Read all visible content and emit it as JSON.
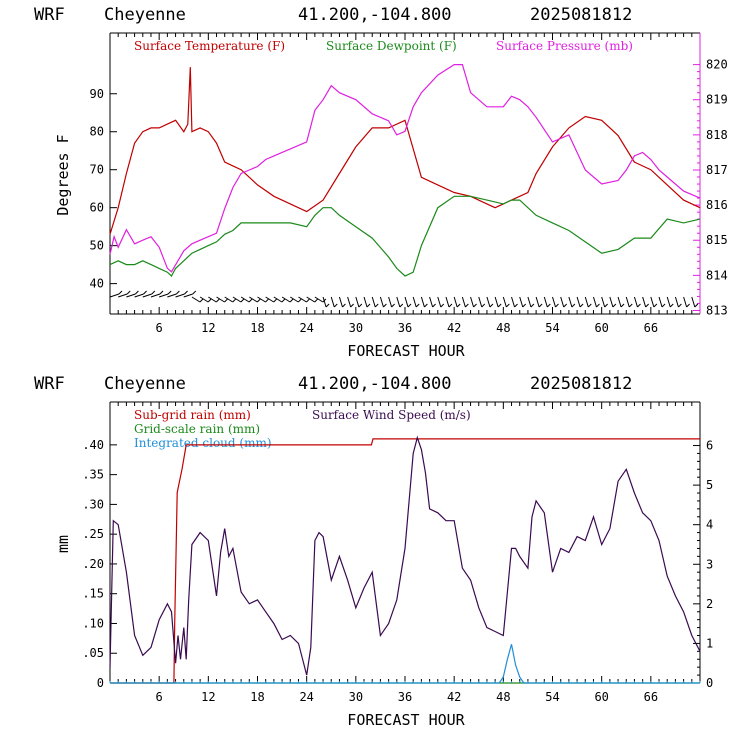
{
  "colors": {
    "temperature": "#c00000",
    "dewpoint": "#1a8a1a",
    "pressure": "#e020e0",
    "subgrid": "#c00000",
    "gridscale": "#1a8a1a",
    "cloud": "#1f8fd8",
    "wind": "#3a0a50",
    "frame": "#000000"
  },
  "chart_data": [
    {
      "type": "line",
      "header": {
        "model": "WRF",
        "site": "Cheyenne",
        "coords": "41.200,-104.800",
        "run": "2025081812"
      },
      "xlabel": "FORECAST HOUR",
      "ylabel": "Degrees F",
      "xlim": [
        0,
        72
      ],
      "ylim": [
        32,
        106
      ],
      "y2lim": [
        812.9,
        820.9
      ],
      "xticks": [
        "6",
        "12",
        "18",
        "24",
        "30",
        "36",
        "42",
        "48",
        "54",
        "60",
        "66"
      ],
      "xtick_values": [
        6,
        12,
        18,
        24,
        30,
        36,
        42,
        48,
        54,
        60,
        66
      ],
      "yticks": [
        "40",
        "50",
        "60",
        "70",
        "80",
        "90"
      ],
      "ytick_values": [
        40,
        50,
        60,
        70,
        80,
        90
      ],
      "y2ticks": [
        "813",
        "814",
        "815",
        "816",
        "817",
        "818",
        "819",
        "820"
      ],
      "y2tick_values": [
        813,
        814,
        815,
        816,
        817,
        818,
        819,
        820
      ],
      "series": [
        {
          "name": "Surface Temperature (F)",
          "color_key": "temperature",
          "axis": "left",
          "x": [
            0,
            1,
            2,
            3,
            4,
            5,
            6,
            7,
            8,
            9,
            9.5,
            9.8,
            10,
            11,
            12,
            13,
            14,
            15,
            16,
            18,
            20,
            22,
            24,
            26,
            28,
            30,
            32,
            34,
            36,
            38,
            40,
            42,
            44,
            46,
            47,
            48,
            49,
            50,
            51,
            52,
            54,
            56,
            58,
            60,
            62,
            64,
            66,
            68,
            70,
            72
          ],
          "y": [
            53,
            60,
            69,
            77,
            80,
            81,
            81,
            82,
            83,
            80,
            82,
            97,
            80,
            81,
            80,
            77,
            72,
            71,
            70,
            66,
            63,
            61,
            59,
            62,
            69,
            76,
            81,
            81,
            83,
            68,
            66,
            64,
            63,
            61,
            60,
            61,
            62,
            63,
            64,
            69,
            76,
            81,
            84,
            83,
            79,
            72,
            70,
            66,
            62,
            60
          ]
        },
        {
          "name": "Surface Dewpoint (F)",
          "color_key": "dewpoint",
          "axis": "left",
          "x": [
            0,
            1,
            2,
            3,
            4,
            5,
            6,
            7,
            7.5,
            8,
            9,
            10,
            11,
            12,
            13,
            14,
            15,
            16,
            18,
            20,
            22,
            24,
            25,
            26,
            27,
            28,
            30,
            32,
            34,
            35,
            36,
            37,
            38,
            40,
            42,
            44,
            46,
            48,
            49,
            50,
            52,
            54,
            56,
            58,
            60,
            62,
            64,
            66,
            68,
            70,
            72
          ],
          "y": [
            45,
            46,
            45,
            45,
            46,
            45,
            44,
            43,
            42,
            44,
            46,
            48,
            49,
            50,
            51,
            53,
            54,
            56,
            56,
            56,
            56,
            55,
            58,
            60,
            60,
            58,
            55,
            52,
            47,
            44,
            42,
            43,
            50,
            60,
            63,
            63,
            62,
            61,
            62,
            62,
            58,
            56,
            54,
            51,
            48,
            49,
            52,
            52,
            57,
            56,
            57
          ]
        },
        {
          "name": "Surface Pressure (mb)",
          "color_key": "pressure",
          "axis": "right",
          "x": [
            0,
            0.5,
            1,
            2,
            3,
            4,
            5,
            6,
            6.5,
            7,
            7.5,
            8,
            9,
            10,
            11,
            12,
            13,
            14,
            15,
            16,
            17,
            18,
            19,
            20,
            22,
            24,
            25,
            26,
            27,
            28,
            30,
            32,
            34,
            35,
            36,
            37,
            38,
            40,
            42,
            43,
            44,
            46,
            48,
            49,
            50,
            51,
            52,
            54,
            56,
            58,
            60,
            62,
            63,
            64,
            65,
            66,
            67,
            68,
            70,
            72
          ],
          "y": [
            814.6,
            815.1,
            814.8,
            815.3,
            814.9,
            815.0,
            815.1,
            814.8,
            814.5,
            814.2,
            814.1,
            814.3,
            814.7,
            814.9,
            815.0,
            815.1,
            815.2,
            815.9,
            816.5,
            816.9,
            817.0,
            817.1,
            817.3,
            817.4,
            817.6,
            817.8,
            818.7,
            819.0,
            819.4,
            819.2,
            819.0,
            818.6,
            818.4,
            818.0,
            818.1,
            818.8,
            819.2,
            819.7,
            820.0,
            820.0,
            819.2,
            818.8,
            818.8,
            819.1,
            819.0,
            818.8,
            818.5,
            817.8,
            818.0,
            817.0,
            816.6,
            816.7,
            817.0,
            817.4,
            817.5,
            817.3,
            817.0,
            816.8,
            816.4,
            816.2
          ]
        }
      ],
      "wind_barbs": true
    },
    {
      "type": "line",
      "header": {
        "model": "WRF",
        "site": "Cheyenne",
        "coords": "41.200,-104.800",
        "run": "2025081812"
      },
      "xlabel": "FORECAST HOUR",
      "ylabel": "mm",
      "xlim": [
        0,
        72
      ],
      "ylim": [
        0,
        0.472
      ],
      "y2lim": [
        0,
        7.1
      ],
      "xticks": [
        "6",
        "12",
        "18",
        "24",
        "30",
        "36",
        "42",
        "48",
        "54",
        "60",
        "66"
      ],
      "xtick_values": [
        6,
        12,
        18,
        24,
        30,
        36,
        42,
        48,
        54,
        60,
        66
      ],
      "yticks": [
        "0",
        ".05",
        ".10",
        ".15",
        ".20",
        ".25",
        ".30",
        ".35",
        ".40"
      ],
      "ytick_values": [
        0,
        0.05,
        0.1,
        0.15,
        0.2,
        0.25,
        0.3,
        0.35,
        0.4
      ],
      "y2ticks": [
        "0",
        "1",
        "2",
        "3",
        "4",
        "5",
        "6"
      ],
      "y2tick_values": [
        0,
        1,
        2,
        3,
        4,
        5,
        6
      ],
      "series": [
        {
          "name": "Sub-grid rain (mm)",
          "color_key": "subgrid",
          "axis": "left",
          "x": [
            0,
            7.8,
            7.9,
            8.2,
            8.8,
            9.3,
            10,
            31.9,
            32.1,
            72
          ],
          "y": [
            0,
            0,
            0.1,
            0.32,
            0.36,
            0.4,
            0.4,
            0.4,
            0.41,
            0.41
          ]
        },
        {
          "name": "Grid-scale rain (mm)",
          "color_key": "gridscale",
          "axis": "left",
          "x": [
            0,
            72
          ],
          "y": [
            0,
            0
          ]
        },
        {
          "name": "Integrated cloud (mm)",
          "color_key": "cloud",
          "axis": "left",
          "x": [
            0,
            47.5,
            48,
            48.5,
            49,
            49.5,
            50,
            50.5,
            72
          ],
          "y": [
            0,
            0,
            0.01,
            0.04,
            0.065,
            0.03,
            0.01,
            0,
            0
          ]
        },
        {
          "name": "Surface Wind Speed (m/s)",
          "color_key": "wind",
          "axis": "right",
          "x": [
            0,
            0.4,
            1,
            2,
            3,
            4,
            5,
            6,
            7,
            7.5,
            8,
            8.3,
            8.6,
            9,
            9.3,
            9.6,
            10,
            11,
            12,
            13,
            13.5,
            14,
            14.5,
            15,
            16,
            17,
            18,
            19,
            20,
            21,
            22,
            23,
            24,
            24.5,
            25,
            25.5,
            26,
            27,
            28,
            29,
            30,
            31,
            32,
            33,
            34,
            35,
            36,
            37,
            37.5,
            38,
            38.5,
            39,
            40,
            41,
            42,
            43,
            44,
            45,
            46,
            47,
            48,
            48.5,
            49,
            49.5,
            50,
            51,
            51.5,
            52,
            53,
            54,
            55,
            56,
            57,
            58,
            59,
            60,
            61,
            62,
            63,
            64,
            65,
            66,
            67,
            68,
            69,
            70,
            71,
            72
          ],
          "y": [
            0.4,
            4.1,
            4.0,
            2.8,
            1.2,
            0.7,
            0.9,
            1.6,
            2.0,
            1.8,
            0.5,
            1.2,
            0.6,
            1.4,
            0.6,
            2.1,
            3.5,
            3.8,
            3.6,
            2.2,
            3.3,
            3.9,
            3.2,
            3.4,
            2.3,
            2.0,
            2.1,
            1.8,
            1.5,
            1.1,
            1.2,
            1.0,
            0.2,
            0.9,
            3.6,
            3.8,
            3.7,
            2.6,
            3.2,
            2.6,
            1.9,
            2.4,
            2.8,
            1.2,
            1.5,
            2.1,
            3.4,
            5.8,
            6.2,
            5.9,
            5.3,
            4.4,
            4.3,
            4.1,
            4.1,
            2.9,
            2.6,
            1.9,
            1.4,
            1.3,
            1.2,
            2.3,
            3.4,
            3.4,
            3.2,
            2.9,
            4.2,
            4.6,
            4.3,
            2.8,
            3.4,
            3.3,
            3.7,
            3.6,
            4.2,
            3.5,
            3.9,
            5.1,
            5.4,
            4.8,
            4.3,
            4.1,
            3.6,
            2.7,
            2.2,
            1.8,
            1.2,
            0.8
          ]
        }
      ]
    }
  ]
}
